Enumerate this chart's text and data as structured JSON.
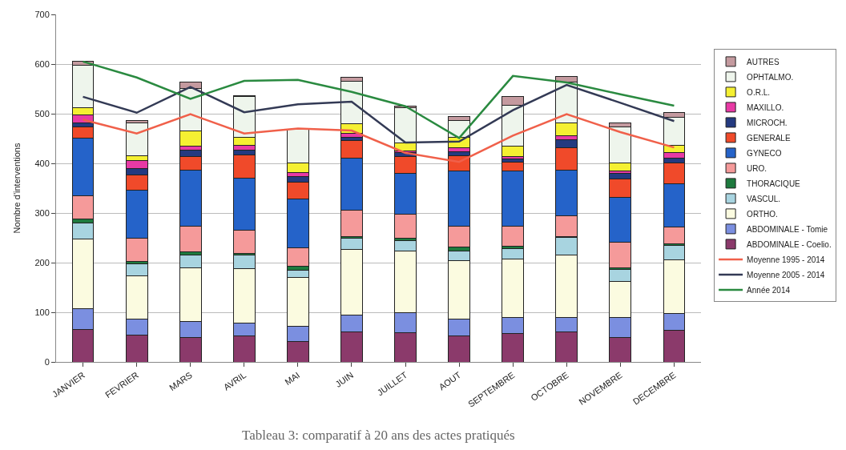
{
  "chart_data": {
    "type": "bar",
    "stacked": true,
    "ylabel": "Nombre d'interventions",
    "annotations": [
      "Tableau 3: comparatif à 20 ans des actes pratiqués"
    ],
    "categories": [
      "JANVIER",
      "FEVRIER",
      "MARS",
      "AVRIL",
      "MAI",
      "JUIN",
      "JUILLET",
      "AOUT",
      "SEPTEMBRE",
      "OCTOBRE",
      "NOVEMBRE",
      "DECEMBRE"
    ],
    "ylim": [
      0,
      700
    ],
    "yticks": [
      0,
      100,
      200,
      300,
      400,
      500,
      600,
      700
    ],
    "grid": "y",
    "legend": "right",
    "series": [
      {
        "name": "ABDOMINALE - Coelio.",
        "color": "#8b3a6b",
        "values": [
          66,
          54,
          49,
          53,
          41,
          61,
          59,
          53,
          58,
          60,
          50,
          64
        ]
      },
      {
        "name": "ABDOMINALE - Tomie",
        "color": "#7b8fe0",
        "values": [
          42,
          33,
          33,
          25,
          31,
          33,
          40,
          33,
          32,
          29,
          40,
          33
        ]
      },
      {
        "name": "ORTHO.",
        "color": "#fbfbe0",
        "values": [
          139,
          87,
          107,
          110,
          98,
          132,
          124,
          118,
          118,
          127,
          72,
          108
        ]
      },
      {
        "name": "VASCUL.",
        "color": "#a8d4e0",
        "values": [
          33,
          24,
          27,
          28,
          14,
          23,
          21,
          20,
          21,
          35,
          25,
          30
        ]
      },
      {
        "name": "THORACIQUE",
        "color": "#1e7a3e",
        "values": [
          8,
          4,
          5,
          2,
          8,
          3,
          5,
          7,
          4,
          2,
          3,
          3
        ]
      },
      {
        "name": "URO.",
        "color": "#f59a9a",
        "values": [
          46,
          48,
          52,
          48,
          38,
          53,
          49,
          43,
          41,
          42,
          51,
          34
        ]
      },
      {
        "name": "GYNECO",
        "color": "#2563c9",
        "values": [
          117,
          96,
          113,
          104,
          98,
          106,
          82,
          111,
          110,
          92,
          90,
          87
        ]
      },
      {
        "name": "GENERALE",
        "color": "#f04a2a",
        "values": [
          22,
          30,
          27,
          47,
          34,
          35,
          33,
          30,
          19,
          45,
          37,
          42
        ]
      },
      {
        "name": "MICROCH.",
        "color": "#243a80",
        "values": [
          8,
          14,
          14,
          10,
          11,
          7,
          8,
          8,
          6,
          15,
          12,
          10
        ]
      },
      {
        "name": "MAXILLO.",
        "color": "#e83aa5",
        "values": [
          16,
          16,
          7,
          9,
          9,
          8,
          4,
          8,
          5,
          9,
          4,
          10
        ]
      },
      {
        "name": "O.R.L.",
        "color": "#f5f032",
        "values": [
          15,
          10,
          31,
          17,
          19,
          19,
          16,
          21,
          20,
          25,
          17,
          16
        ]
      },
      {
        "name": "OPHTALMO.",
        "color": "#eef5ec",
        "values": [
          86,
          65,
          86,
          81,
          68,
          86,
          71,
          34,
          83,
          83,
          72,
          55
        ]
      },
      {
        "name": "AUTRES",
        "color": "#c49a9f",
        "values": [
          7,
          5,
          12,
          3,
          null,
          8,
          3,
          9,
          18,
          11,
          8,
          10
        ]
      },
      {
        "name": "Moyenne 1995 - 2014",
        "type": "line",
        "color": "#f0604a",
        "values": [
          488,
          460,
          499,
          460,
          470,
          466,
          421,
          403,
          456,
          499,
          463,
          432
        ]
      },
      {
        "name": "Moyenne 2005 - 2014",
        "type": "line",
        "color": "#333a55",
        "values": [
          534,
          502,
          554,
          503,
          519,
          524,
          442,
          444,
          507,
          558,
          522,
          485
        ]
      },
      {
        "name": "Année 2014",
        "type": "line",
        "color": "#2a8a40",
        "values": [
          605,
          573,
          530,
          566,
          568,
          544,
          515,
          451,
          576,
          563,
          539,
          516
        ]
      }
    ]
  }
}
